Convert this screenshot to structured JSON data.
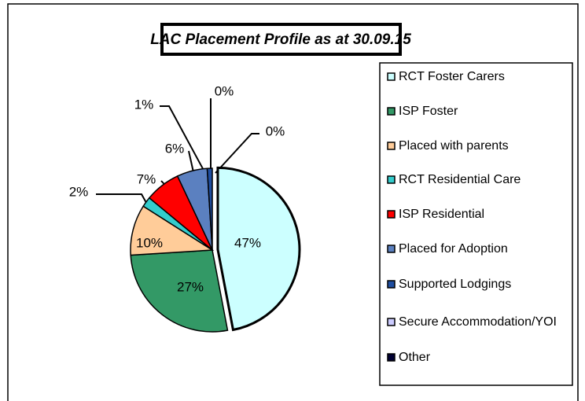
{
  "chart_data": {
    "type": "pie",
    "title": "LAC Placement Profile as at 30.09.15",
    "categories": [
      "RCT Foster Carers",
      "ISP Foster",
      "Placed with parents",
      "RCT Residential Care",
      "ISP Residential",
      "Placed for Adoption",
      "Supported Lodgings",
      "Secure Accommodation/YOI",
      "Other"
    ],
    "values": [
      47,
      27,
      10,
      2,
      7,
      6,
      1,
      0,
      0
    ],
    "value_labels": [
      "47%",
      "27%",
      "10%",
      "2%",
      "7%",
      "6%",
      "1%",
      "0%",
      "0%"
    ],
    "colors": [
      "#ccffff",
      "#339966",
      "#ffcc99",
      "#33cccc",
      "#ff0000",
      "#5b80c0",
      "#1f4ea0",
      "#ccccff",
      "#000033"
    ],
    "legend": "right"
  }
}
